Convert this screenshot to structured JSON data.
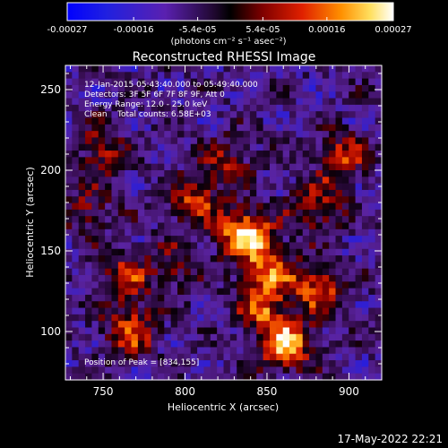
{
  "colorbar": {
    "ticks": [
      "-0.00027",
      "-0.00016",
      "-5.4e-05",
      "5.4e-05",
      "0.00016",
      "0.00027"
    ],
    "ticks_values": [
      -0.00027,
      -0.00016,
      -5.4e-05,
      5.4e-05,
      0.00016,
      0.00027
    ],
    "unit_label": "(photons cm⁻² s⁻¹ asec⁻²)",
    "range": [
      -0.00027,
      0.00027
    ]
  },
  "chart_data": {
    "type": "heatmap",
    "title": "Reconstructed RHESSI Image",
    "xlabel": "Heliocentric X (arcsec)",
    "ylabel": "Heliocentric Y (arcsec)",
    "xlim": [
      727,
      920
    ],
    "ylim": [
      70,
      265
    ],
    "xticks": [
      750,
      800,
      850,
      900
    ],
    "yticks": [
      100,
      150,
      200,
      250
    ],
    "peak": [
      834,
      155
    ],
    "sources": [
      {
        "x": 837,
        "y": 160,
        "amp": 1.0
      },
      {
        "x": 853,
        "y": 138,
        "amp": 0.6
      },
      {
        "x": 862,
        "y": 92,
        "amp": 0.9
      },
      {
        "x": 847,
        "y": 115,
        "amp": 0.6
      },
      {
        "x": 882,
        "y": 126,
        "amp": 0.6
      },
      {
        "x": 763,
        "y": 133,
        "amp": 0.55
      },
      {
        "x": 767,
        "y": 100,
        "amp": 0.6
      },
      {
        "x": 805,
        "y": 180,
        "amp": 0.55
      },
      {
        "x": 750,
        "y": 212,
        "amp": 0.45
      },
      {
        "x": 896,
        "y": 208,
        "amp": 0.5
      },
      {
        "x": 880,
        "y": 178,
        "amp": 0.5
      },
      {
        "x": 795,
        "y": 140,
        "amp": 0.35
      },
      {
        "x": 825,
        "y": 205,
        "amp": 0.4
      },
      {
        "x": 740,
        "y": 175,
        "amp": 0.35
      }
    ],
    "annotations": {
      "time": "12-Jan-2015 05:43:40.000 to 05:49:40.000",
      "detectors": "Detectors: 3F 5F 6F 7F 8F 9F, Att 0",
      "energy": "Energy Range: 12.0 - 25.0 keV",
      "clean": "Clean    Total counts: 6.58E+03",
      "peak": "Position of Peak = [834,155]"
    }
  },
  "footer": {
    "datestamp": "17-May-2022 22:21"
  }
}
